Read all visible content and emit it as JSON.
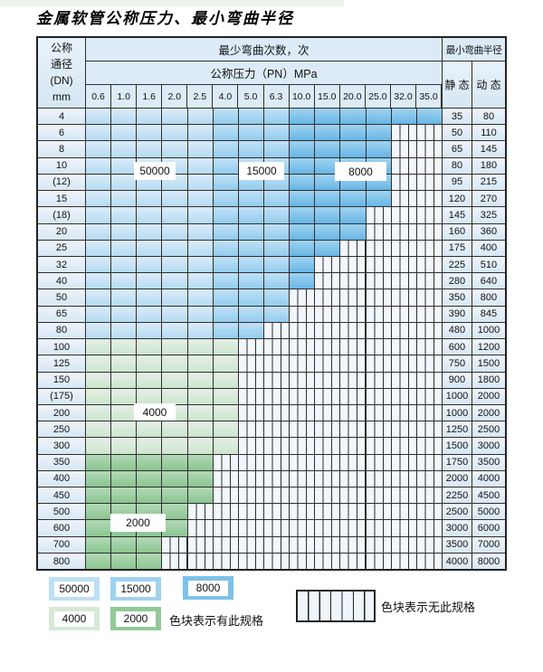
{
  "page": {
    "title": "金属软管公称压力、最小弯曲半径"
  },
  "table": {
    "dn_header_lines": [
      "公称",
      "通径",
      "(DN)",
      "mm"
    ],
    "cycles_header": "最少弯曲次数，次",
    "pressure_header": "公称压力（PN）MPa",
    "pressures": [
      "0.6",
      "1.0",
      "1.6",
      "2.0",
      "2.5",
      "4.0",
      "5.0",
      "6.3",
      "10.0",
      "15.0",
      "20.0",
      "25.0",
      "32.0",
      "35.0"
    ],
    "radius_header": "最小弯曲半径",
    "static_header": "静 态",
    "dynamic_header": "动 态",
    "band_rules": {
      "blue_50000_max_col": 5,
      "blue_15000_max_col": 8,
      "blue_8000_max_col": 14
    },
    "cycle_overlays": {
      "c50000": "50000",
      "c15000": "15000",
      "c8000": "8000",
      "c4000": "4000",
      "c2000": "2000"
    },
    "rows": [
      {
        "dn": "4",
        "band": "b",
        "colored_until_col": 14,
        "static": "35",
        "dynamic": "80"
      },
      {
        "dn": "6",
        "band": "b",
        "colored_until_col": 12,
        "static": "50",
        "dynamic": "110"
      },
      {
        "dn": "8",
        "band": "b",
        "colored_until_col": 12,
        "static": "65",
        "dynamic": "145"
      },
      {
        "dn": "10",
        "band": "b",
        "colored_until_col": 12,
        "static": "80",
        "dynamic": "180"
      },
      {
        "dn": "(12)",
        "band": "b",
        "colored_until_col": 12,
        "static": "95",
        "dynamic": "215"
      },
      {
        "dn": "15",
        "band": "b",
        "colored_until_col": 12,
        "static": "120",
        "dynamic": "270"
      },
      {
        "dn": "(18)",
        "band": "b",
        "colored_until_col": 11,
        "static": "145",
        "dynamic": "325"
      },
      {
        "dn": "20",
        "band": "b",
        "colored_until_col": 11,
        "static": "160",
        "dynamic": "360"
      },
      {
        "dn": "25",
        "band": "b",
        "colored_until_col": 10,
        "static": "175",
        "dynamic": "400"
      },
      {
        "dn": "32",
        "band": "b",
        "colored_until_col": 9,
        "static": "225",
        "dynamic": "510"
      },
      {
        "dn": "40",
        "band": "b",
        "colored_until_col": 9,
        "static": "280",
        "dynamic": "640"
      },
      {
        "dn": "50",
        "band": "b",
        "colored_until_col": 8,
        "static": "350",
        "dynamic": "800"
      },
      {
        "dn": "65",
        "band": "b",
        "colored_until_col": 8,
        "static": "390",
        "dynamic": "845"
      },
      {
        "dn": "80",
        "band": "b",
        "colored_until_col": 7,
        "static": "480",
        "dynamic": "1000"
      },
      {
        "dn": "100",
        "band": "g1",
        "colored_until_col": 6,
        "static": "600",
        "dynamic": "1200"
      },
      {
        "dn": "125",
        "band": "g1",
        "colored_until_col": 6,
        "static": "750",
        "dynamic": "1500"
      },
      {
        "dn": "150",
        "band": "g1",
        "colored_until_col": 6,
        "static": "900",
        "dynamic": "1800"
      },
      {
        "dn": "(175)",
        "band": "g1",
        "colored_until_col": 6,
        "static": "1000",
        "dynamic": "2000"
      },
      {
        "dn": "200",
        "band": "g1",
        "colored_until_col": 6,
        "static": "1000",
        "dynamic": "2000"
      },
      {
        "dn": "250",
        "band": "g1",
        "colored_until_col": 6,
        "static": "1250",
        "dynamic": "2500"
      },
      {
        "dn": "300",
        "band": "g1",
        "colored_until_col": 6,
        "static": "1500",
        "dynamic": "3000"
      },
      {
        "dn": "350",
        "band": "g2",
        "colored_until_col": 5,
        "static": "1750",
        "dynamic": "3500"
      },
      {
        "dn": "400",
        "band": "g2",
        "colored_until_col": 5,
        "static": "2000",
        "dynamic": "4000"
      },
      {
        "dn": "450",
        "band": "g2",
        "colored_until_col": 5,
        "static": "2250",
        "dynamic": "4500"
      },
      {
        "dn": "500",
        "band": "g2",
        "colored_until_col": 4,
        "static": "2500",
        "dynamic": "5000"
      },
      {
        "dn": "600",
        "band": "g2",
        "colored_until_col": 4,
        "static": "3000",
        "dynamic": "6000"
      },
      {
        "dn": "700",
        "band": "g2",
        "colored_until_col": 3,
        "static": "3500",
        "dynamic": "7000"
      },
      {
        "dn": "800",
        "band": "g2",
        "colored_until_col": 3,
        "static": "4000",
        "dynamic": "8000"
      }
    ]
  },
  "legend": {
    "swatches": [
      {
        "label": "50000",
        "color": "#bedff4"
      },
      {
        "label": "15000",
        "color": "#9fd2ef"
      },
      {
        "label": "8000",
        "color": "#7cc1ea"
      },
      {
        "label": "4000",
        "color": "#d5e9d6"
      },
      {
        "label": "2000",
        "color": "#92c999"
      }
    ],
    "has_spec_label": "色块表示有此规格",
    "no_spec_label": "色块表示无此规格"
  },
  "colors": {
    "blue_50000": "#bedff4",
    "blue_15000": "#9fd2ef",
    "blue_8000": "#7cc1ea",
    "green_4000": "#d5e9d6",
    "green_2000": "#92c999",
    "grid_line": "#2e2e2e",
    "header_bg": "#dcebf7"
  }
}
